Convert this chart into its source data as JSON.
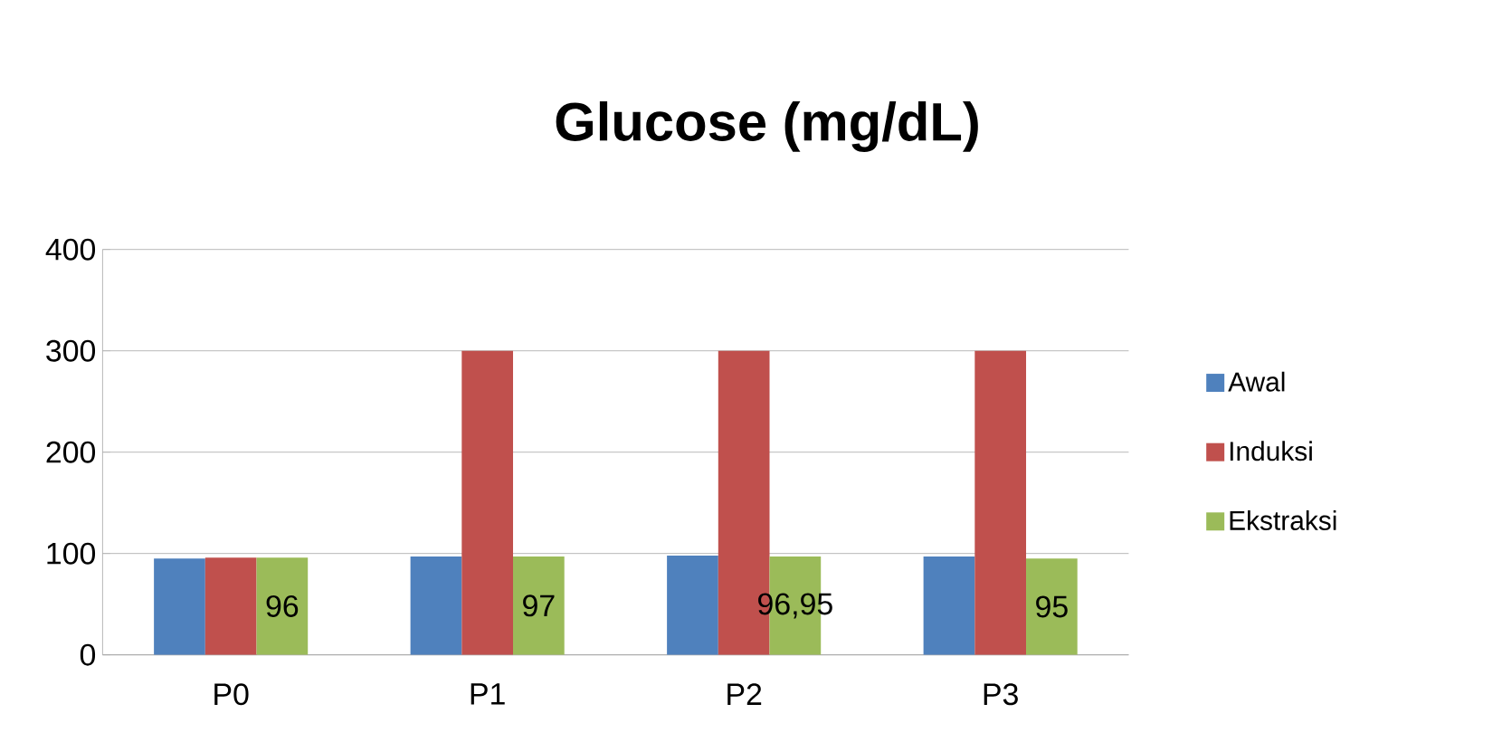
{
  "chart_data": {
    "type": "bar",
    "title": "Glucose (mg/dL)",
    "categories": [
      "P0",
      "P1",
      "P2",
      "P3"
    ],
    "series": [
      {
        "name": "Awal",
        "color": "#4f81bd",
        "values": [
          95,
          97,
          98,
          97
        ]
      },
      {
        "name": "Induksi",
        "color": "#c0504d",
        "values": [
          96,
          300,
          300,
          300
        ]
      },
      {
        "name": "Ekstraksi",
        "color": "#9bbb59",
        "values": [
          96,
          97,
          96.95,
          95
        ],
        "value_labels": [
          "96",
          "97",
          "96,95",
          "95"
        ]
      }
    ],
    "ylim": [
      0,
      400
    ],
    "yticks": [
      0,
      100,
      200,
      300,
      400
    ],
    "grid": "y",
    "legend": "right"
  }
}
